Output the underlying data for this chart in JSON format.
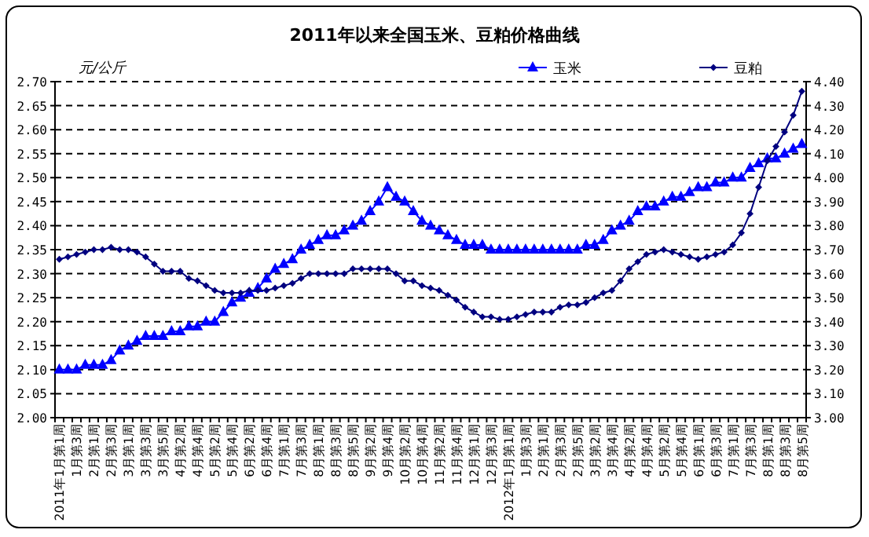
{
  "chart_data": {
    "type": "line",
    "title": "2011年以来全国玉米、豆粕价格曲线",
    "ylabel": "元/公斤",
    "categories": [
      "2011年1月第1周",
      null,
      "1月第3周",
      null,
      "2月第1周",
      null,
      "2月第3周",
      null,
      "3月第1周",
      null,
      "3月第3周",
      null,
      "3月第5周",
      null,
      "4月第2周",
      null,
      "4月第4周",
      null,
      "5月第2周",
      null,
      "5月第4周",
      null,
      "6月第2周",
      null,
      "6月第4周",
      null,
      "7月第1周",
      null,
      "7月第3周",
      null,
      "8月第1周",
      null,
      "8月第3周",
      null,
      "8月第5周",
      null,
      "9月第2周",
      null,
      "9月第4周",
      null,
      "10月第2周",
      null,
      "10月第4周",
      null,
      "11月第2周",
      null,
      "11月第4周",
      null,
      "12月第1周",
      null,
      "12月第3周",
      null,
      "2012年1月第1周",
      null,
      "1月第3周",
      null,
      "2月第1周",
      null,
      "2月第3周",
      null,
      "2月第5周",
      null,
      "3月第2周",
      null,
      "3月第4周",
      null,
      "4月第2周",
      null,
      "4月第4周",
      null,
      "5月第2周",
      null,
      "5月第4周",
      null,
      "6月第1周",
      null,
      "6月第3周",
      null,
      "7月第1周",
      null,
      "7月第3周",
      null,
      "8月第1周",
      null,
      "8月第3周",
      null,
      "8月第5周"
    ],
    "series": [
      {
        "name": "玉米",
        "color": "#0000ff",
        "marker": "triangle",
        "values": [
          2.1,
          2.1,
          2.1,
          2.11,
          2.11,
          2.11,
          2.12,
          2.14,
          2.15,
          2.16,
          2.17,
          2.17,
          2.17,
          2.18,
          2.18,
          2.19,
          2.19,
          2.2,
          2.2,
          2.22,
          2.24,
          2.25,
          2.26,
          2.27,
          2.29,
          2.31,
          2.32,
          2.33,
          2.35,
          2.36,
          2.37,
          2.38,
          2.38,
          2.39,
          2.4,
          2.41,
          2.43,
          2.45,
          2.48,
          2.46,
          2.45,
          2.43,
          2.41,
          2.4,
          2.39,
          2.38,
          2.37,
          2.36,
          2.36,
          2.36,
          2.35,
          2.35,
          2.35,
          2.35,
          2.35,
          2.35,
          2.35,
          2.35,
          2.35,
          2.35,
          2.35,
          2.36,
          2.36,
          2.37,
          2.39,
          2.4,
          2.41,
          2.43,
          2.44,
          2.44,
          2.45,
          2.46,
          2.46,
          2.47,
          2.48,
          2.48,
          2.49,
          2.49,
          2.5,
          2.5,
          2.52,
          2.53,
          2.54,
          2.54,
          2.55,
          2.56,
          2.57
        ]
      },
      {
        "name": "豆粕",
        "color": "#000080",
        "marker": "diamond",
        "axis": "y2",
        "values": [
          3.66,
          3.67,
          3.68,
          3.69,
          3.7,
          3.7,
          3.71,
          3.7,
          3.7,
          3.69,
          3.67,
          3.64,
          3.61,
          3.61,
          3.61,
          3.58,
          3.57,
          3.55,
          3.53,
          3.52,
          3.52,
          3.52,
          3.53,
          3.53,
          3.53,
          3.54,
          3.55,
          3.56,
          3.58,
          3.6,
          3.6,
          3.6,
          3.6,
          3.6,
          3.62,
          3.62,
          3.62,
          3.62,
          3.62,
          3.6,
          3.57,
          3.57,
          3.55,
          3.54,
          3.53,
          3.51,
          3.49,
          3.46,
          3.44,
          3.42,
          3.42,
          3.41,
          3.41,
          3.42,
          3.43,
          3.44,
          3.44,
          3.44,
          3.46,
          3.47,
          3.47,
          3.48,
          3.5,
          3.52,
          3.53,
          3.57,
          3.62,
          3.65,
          3.68,
          3.69,
          3.7,
          3.69,
          3.68,
          3.67,
          3.66,
          3.67,
          3.68,
          3.69,
          3.72,
          3.77,
          3.85,
          3.96,
          4.07,
          4.13,
          4.19,
          4.26,
          4.36
        ]
      }
    ],
    "ylim": [
      2.0,
      2.7
    ],
    "yticks": [
      {
        "value": 2.0,
        "label": "2.00"
      },
      {
        "value": 2.05,
        "label": "2.05"
      },
      {
        "value": 2.1,
        "label": "2.10"
      },
      {
        "value": 2.15,
        "label": "2.15"
      },
      {
        "value": 2.2,
        "label": "2.20"
      },
      {
        "value": 2.25,
        "label": "2.25"
      },
      {
        "value": 2.3,
        "label": "2.30"
      },
      {
        "value": 2.35,
        "label": "2.35"
      },
      {
        "value": 2.4,
        "label": "2.40"
      },
      {
        "value": 2.45,
        "label": "2.45"
      },
      {
        "value": 2.5,
        "label": "2.50"
      },
      {
        "value": 2.55,
        "label": "2.55"
      },
      {
        "value": 2.6,
        "label": "2.60"
      },
      {
        "value": 2.65,
        "label": "2.65"
      },
      {
        "value": 2.7,
        "label": "2.70"
      }
    ],
    "y2lim": [
      3.0,
      4.4
    ],
    "y2ticks": [
      {
        "value": 3.0,
        "label": "3.00"
      },
      {
        "value": 3.1,
        "label": "3.10"
      },
      {
        "value": 3.2,
        "label": "3.20"
      },
      {
        "value": 3.3,
        "label": "3.30"
      },
      {
        "value": 3.4,
        "label": "3.40"
      },
      {
        "value": 3.5,
        "label": "3.50"
      },
      {
        "value": 3.6,
        "label": "3.60"
      },
      {
        "value": 3.7,
        "label": "3.70"
      },
      {
        "value": 3.8,
        "label": "3.80"
      },
      {
        "value": 3.9,
        "label": "3.90"
      },
      {
        "value": 4.0,
        "label": "4.00"
      },
      {
        "value": 4.1,
        "label": "4.10"
      },
      {
        "value": 4.2,
        "label": "4.20"
      },
      {
        "value": 4.3,
        "label": "4.30"
      },
      {
        "value": 4.4,
        "label": "4.40"
      }
    ],
    "grid": "y",
    "legend": "top right"
  }
}
